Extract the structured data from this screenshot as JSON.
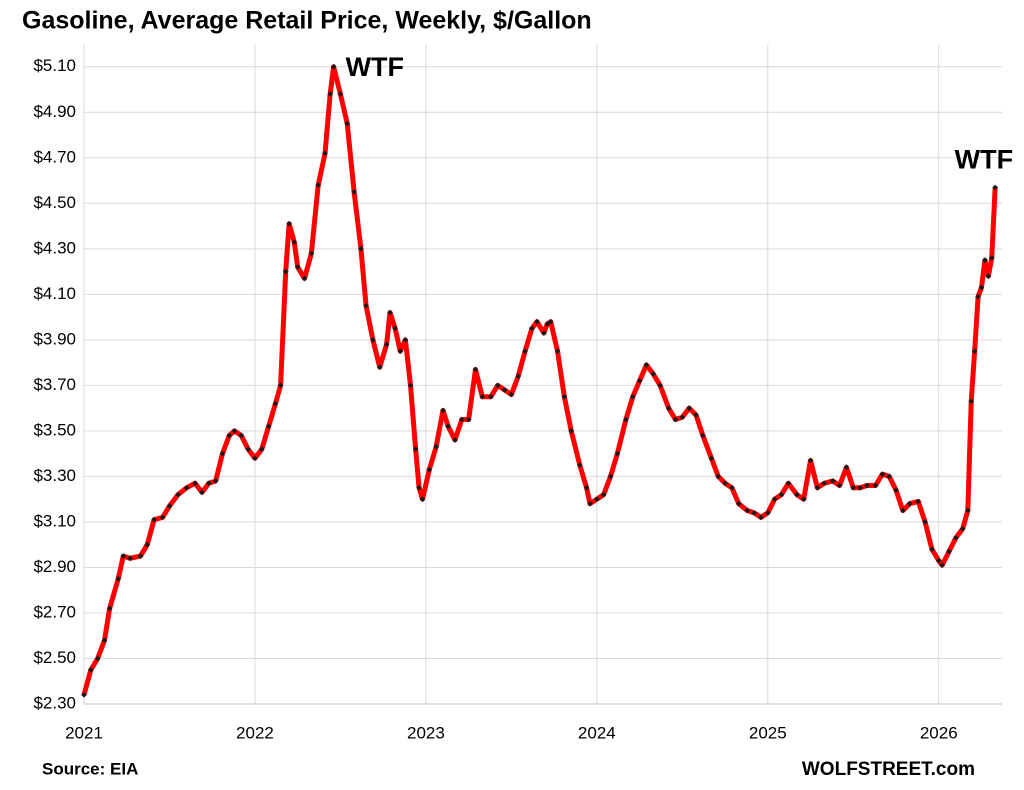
{
  "chart_data": {
    "type": "line",
    "title": "Gasoline, Average Retail Price, Weekly, $/Gallon",
    "source": "Source: EIA",
    "credit": "WOLFSTREET.com",
    "annotations": [
      {
        "text": "WTF",
        "x": 2022.46,
        "y": 5.1
      },
      {
        "text": "WTF",
        "x": 2026.33,
        "y": 4.57
      }
    ],
    "color": "#ff0000",
    "marker_color": "#1a1a1a",
    "grid": true,
    "xlim": [
      2021,
      2026.37
    ],
    "xticks": [
      2021,
      2022,
      2023,
      2024,
      2025,
      2026
    ],
    "ylim": [
      2.3,
      5.2
    ],
    "yticks": [
      {
        "value": 2.3,
        "label": "$2.30"
      },
      {
        "value": 2.5,
        "label": "$2.50"
      },
      {
        "value": 2.7,
        "label": "$2.70"
      },
      {
        "value": 2.9,
        "label": "$2.90"
      },
      {
        "value": 3.1,
        "label": "$3.10"
      },
      {
        "value": 3.3,
        "label": "$3.30"
      },
      {
        "value": 3.5,
        "label": "$3.50"
      },
      {
        "value": 3.7,
        "label": "$3.70"
      },
      {
        "value": 3.9,
        "label": "$3.90"
      },
      {
        "value": 4.1,
        "label": "$4.10"
      },
      {
        "value": 4.3,
        "label": "$4.30"
      },
      {
        "value": 4.5,
        "label": "$4.50"
      },
      {
        "value": 4.7,
        "label": "$4.70"
      },
      {
        "value": 4.9,
        "label": "$4.90"
      },
      {
        "value": 5.1,
        "label": "$5.10"
      }
    ],
    "x": [
      2021.0,
      2021.04,
      2021.08,
      2021.12,
      2021.15,
      2021.2,
      2021.23,
      2021.27,
      2021.33,
      2021.37,
      2021.41,
      2021.46,
      2021.5,
      2021.55,
      2021.6,
      2021.65,
      2021.69,
      2021.73,
      2021.77,
      2021.81,
      2021.85,
      2021.88,
      2021.92,
      2021.96,
      2022.0,
      2022.04,
      2022.08,
      2022.12,
      2022.15,
      2022.18,
      2022.2,
      2022.23,
      2022.25,
      2022.29,
      2022.33,
      2022.37,
      2022.41,
      2022.44,
      2022.46,
      2022.5,
      2022.54,
      2022.58,
      2022.62,
      2022.65,
      2022.69,
      2022.73,
      2022.77,
      2022.79,
      2022.82,
      2022.85,
      2022.88,
      2022.91,
      2022.94,
      2022.96,
      2022.98,
      2023.02,
      2023.06,
      2023.1,
      2023.13,
      2023.17,
      2023.21,
      2023.25,
      2023.29,
      2023.33,
      2023.38,
      2023.42,
      2023.46,
      2023.5,
      2023.54,
      2023.58,
      2023.62,
      2023.65,
      2023.69,
      2023.71,
      2023.73,
      2023.77,
      2023.81,
      2023.85,
      2023.9,
      2023.94,
      2023.96,
      2024.0,
      2024.04,
      2024.08,
      2024.12,
      2024.17,
      2024.21,
      2024.25,
      2024.29,
      2024.33,
      2024.37,
      2024.42,
      2024.46,
      2024.5,
      2024.54,
      2024.58,
      2024.62,
      2024.67,
      2024.71,
      2024.75,
      2024.79,
      2024.83,
      2024.88,
      2024.92,
      2024.96,
      2025.0,
      2025.04,
      2025.08,
      2025.12,
      2025.17,
      2025.21,
      2025.25,
      2025.29,
      2025.33,
      2025.38,
      2025.42,
      2025.46,
      2025.5,
      2025.54,
      2025.58,
      2025.63,
      2025.67,
      2025.71,
      2025.75,
      2025.79,
      2025.83,
      2025.88,
      2025.92,
      2025.96,
      2026.0,
      2026.02,
      2026.06,
      2026.1,
      2026.14,
      2026.17,
      2026.19,
      2026.21,
      2026.23,
      2026.25,
      2026.27,
      2026.29,
      2026.31,
      2026.33
    ],
    "values": [
      2.34,
      2.45,
      2.5,
      2.58,
      2.72,
      2.85,
      2.95,
      2.94,
      2.95,
      3.0,
      3.11,
      3.12,
      3.17,
      3.22,
      3.25,
      3.27,
      3.23,
      3.27,
      3.28,
      3.4,
      3.48,
      3.5,
      3.48,
      3.42,
      3.38,
      3.42,
      3.52,
      3.62,
      3.7,
      4.2,
      4.41,
      4.33,
      4.22,
      4.17,
      4.28,
      4.58,
      4.72,
      4.98,
      5.1,
      4.98,
      4.85,
      4.55,
      4.3,
      4.05,
      3.9,
      3.78,
      3.88,
      4.02,
      3.95,
      3.85,
      3.9,
      3.7,
      3.42,
      3.25,
      3.2,
      3.33,
      3.43,
      3.59,
      3.52,
      3.46,
      3.55,
      3.55,
      3.77,
      3.65,
      3.65,
      3.7,
      3.68,
      3.66,
      3.74,
      3.85,
      3.95,
      3.98,
      3.93,
      3.97,
      3.98,
      3.85,
      3.65,
      3.5,
      3.35,
      3.25,
      3.18,
      3.2,
      3.22,
      3.3,
      3.4,
      3.55,
      3.65,
      3.72,
      3.79,
      3.75,
      3.7,
      3.6,
      3.55,
      3.56,
      3.6,
      3.57,
      3.48,
      3.38,
      3.3,
      3.27,
      3.25,
      3.18,
      3.15,
      3.14,
      3.12,
      3.14,
      3.2,
      3.22,
      3.27,
      3.22,
      3.2,
      3.37,
      3.25,
      3.27,
      3.28,
      3.26,
      3.34,
      3.25,
      3.25,
      3.26,
      3.26,
      3.31,
      3.3,
      3.24,
      3.15,
      3.18,
      3.19,
      3.1,
      2.98,
      2.93,
      2.91,
      2.97,
      3.03,
      3.07,
      3.15,
      3.63,
      3.85,
      4.09,
      4.13,
      4.25,
      4.18,
      4.26,
      4.57
    ]
  }
}
